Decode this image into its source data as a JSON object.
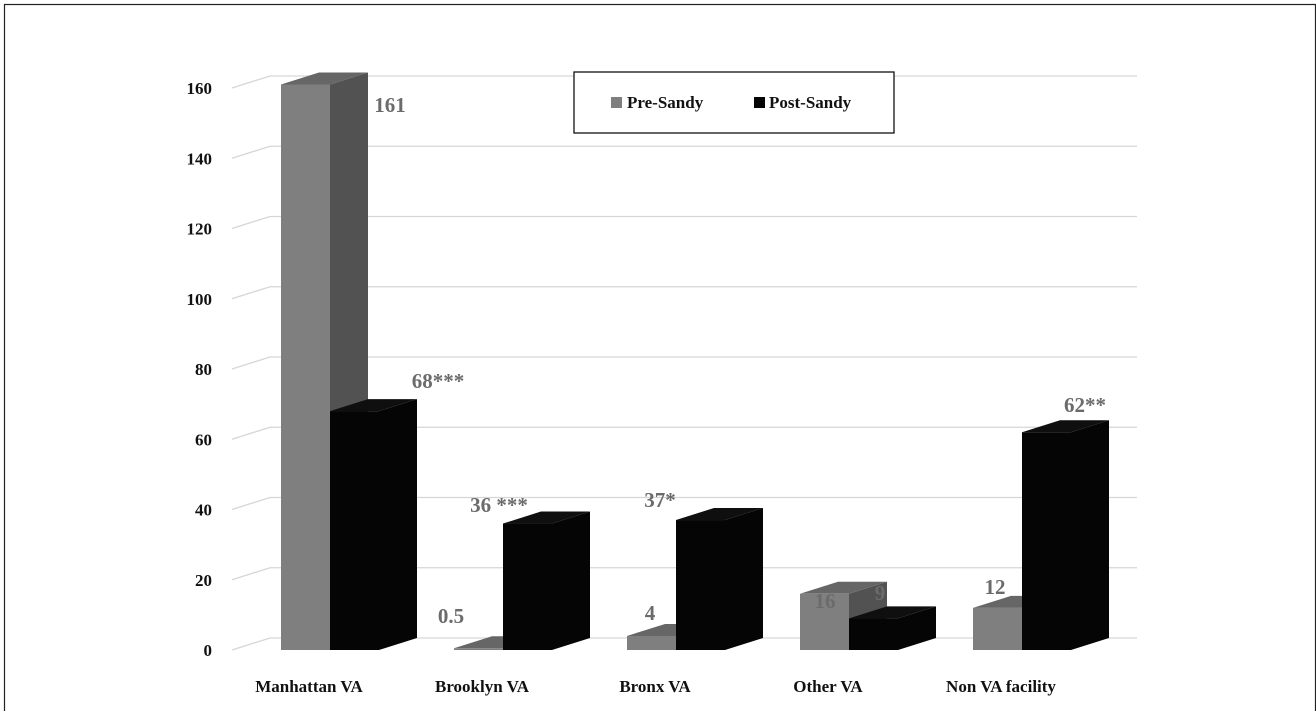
{
  "chart_data": {
    "type": "bar",
    "categories": [
      "Manhattan VA",
      "Brooklyn VA",
      "Bronx VA",
      "Other VA",
      "Non VA facility"
    ],
    "series": [
      {
        "name": "Pre-Sandy",
        "values": [
          161,
          0.5,
          4,
          16,
          12
        ],
        "labels": [
          "161",
          "0.5",
          "4",
          "16",
          "12"
        ],
        "color": "#7f7f7f"
      },
      {
        "name": "Post-Sandy",
        "values": [
          68,
          36,
          37,
          9,
          62
        ],
        "labels": [
          "68***",
          "36 ***",
          "37*",
          "9",
          "62**"
        ],
        "color": "#050505"
      }
    ],
    "yticks": [
      "0",
      "20",
      "40",
      "60",
      "80",
      "100",
      "120",
      "140",
      "160"
    ],
    "ylim": [
      0,
      160
    ],
    "grid": true,
    "legend_position": "top-center",
    "three_d": true
  }
}
